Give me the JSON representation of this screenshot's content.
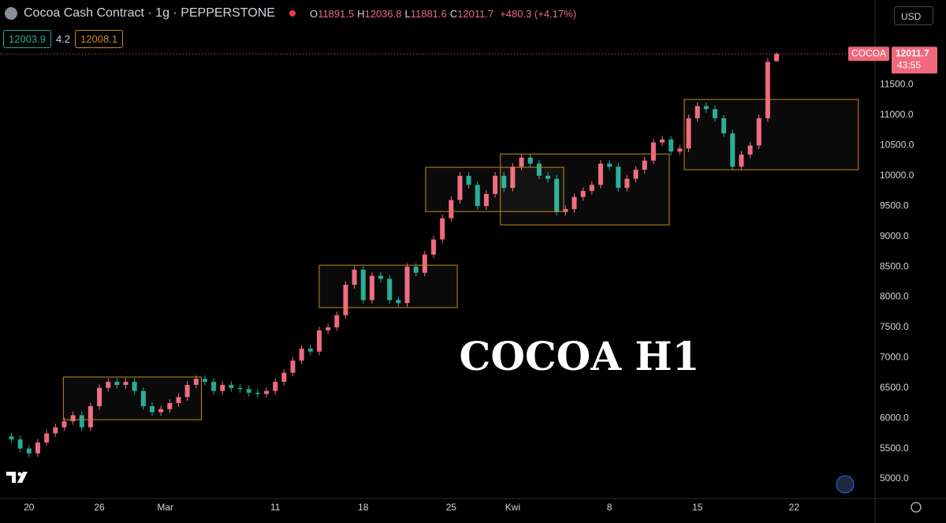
{
  "header": {
    "title": "Cocoa Cash Contract · 1g · PEPPERSTONE",
    "ohlc": [
      {
        "label": "O",
        "value": 11891.5
      },
      {
        "label": "H",
        "value": 12036.8
      },
      {
        "label": "L",
        "value": 11881.6
      },
      {
        "label": "C",
        "value": 12011.7
      }
    ],
    "change": "+480.3 (+4.17%)",
    "bid": 12003.9,
    "spread": 4.2,
    "ask": 12008.1,
    "currency": "USD"
  },
  "chart_data": {
    "type": "candlestick",
    "annotation": "COCOA H1",
    "up_color": "#f0697c",
    "down_color": "#22ab94",
    "zone_color": "#c98a1a",
    "grid": false,
    "xlim": [
      -1.3,
      98.2
    ],
    "ylim": [
      4675,
      12900
    ],
    "xticks": [
      {
        "value": 2,
        "label": "20"
      },
      {
        "value": 10,
        "label": "26"
      },
      {
        "value": 17.5,
        "label": "Mar"
      },
      {
        "value": 30,
        "label": "11"
      },
      {
        "value": 40,
        "label": "18"
      },
      {
        "value": 50,
        "label": "25"
      },
      {
        "value": 57,
        "label": "Kwi"
      },
      {
        "value": 68,
        "label": "8"
      },
      {
        "value": 78,
        "label": "15"
      },
      {
        "value": 89,
        "label": "22"
      }
    ],
    "yticks": [
      {
        "value": 5000,
        "label": "5000.0"
      },
      {
        "value": 5500,
        "label": "5500.0"
      },
      {
        "value": 6000,
        "label": "6000.0"
      },
      {
        "value": 6500,
        "label": "6500.0"
      },
      {
        "value": 7000,
        "label": "7000.0"
      },
      {
        "value": 7500,
        "label": "7500.0"
      },
      {
        "value": 8000,
        "label": "8000.0"
      },
      {
        "value": 8500,
        "label": "8500.0"
      },
      {
        "value": 9000,
        "label": "9000.0"
      },
      {
        "value": 9500,
        "label": "9500.0"
      },
      {
        "value": 10000,
        "label": "10000.0"
      },
      {
        "value": 10500,
        "label": "10500.0"
      },
      {
        "value": 11000,
        "label": "11000.0"
      },
      {
        "value": 11500,
        "label": "11500.0"
      }
    ],
    "open": [
      5700,
      5650,
      5500,
      5420,
      5600,
      5750,
      5850,
      5950,
      6050,
      5850,
      6200,
      6500,
      6600,
      6550,
      6600,
      6450,
      6200,
      6100,
      6150,
      6250,
      6350,
      6550,
      6650,
      6600,
      6450,
      6550,
      6500,
      6480,
      6420,
      6400,
      6450,
      6600,
      6750,
      6950,
      7150,
      7100,
      7450,
      7500,
      7700,
      8200,
      8450,
      7950,
      8350,
      8300,
      7950,
      7900,
      8500,
      8400,
      8700,
      8950,
      9300,
      9600,
      10000,
      9850,
      9500,
      9700,
      10000,
      9800,
      10150,
      10300,
      10200,
      10000,
      9950,
      9400,
      9450,
      9650,
      9750,
      9850,
      10200,
      10150,
      9800,
      9950,
      10100,
      10250,
      10550,
      10600,
      10400,
      10450,
      10950,
      11150,
      11100,
      10950,
      10700,
      10150,
      10350,
      10500,
      10950,
      11891.5
    ],
    "high": [
      5760,
      5710,
      5560,
      5660,
      5810,
      5910,
      6010,
      6110,
      6110,
      6260,
      6560,
      6660,
      6660,
      6660,
      6660,
      6510,
      6260,
      6210,
      6310,
      6410,
      6610,
      6710,
      6710,
      6660,
      6610,
      6610,
      6560,
      6540,
      6480,
      6510,
      6660,
      6810,
      7010,
      7210,
      7210,
      7510,
      7560,
      7760,
      8260,
      8510,
      8510,
      8410,
      8410,
      8360,
      8010,
      8560,
      8560,
      8760,
      9010,
      9360,
      9660,
      10060,
      10060,
      9910,
      9760,
      10060,
      10060,
      10210,
      10360,
      10360,
      10260,
      10060,
      10010,
      9510,
      9710,
      9810,
      9910,
      10260,
      10260,
      10210,
      10010,
      10160,
      10310,
      10610,
      10660,
      10660,
      10510,
      11010,
      11210,
      11210,
      11160,
      11010,
      10760,
      10410,
      10560,
      11010,
      11940,
      12036.8
    ],
    "low": [
      5590,
      5440,
      5360,
      5360,
      5540,
      5690,
      5790,
      5890,
      5790,
      5790,
      6140,
      6440,
      6490,
      6490,
      6390,
      6140,
      6040,
      6040,
      6090,
      6190,
      6290,
      6490,
      6540,
      6390,
      6390,
      6440,
      6420,
      6360,
      6340,
      6340,
      6390,
      6540,
      6690,
      6890,
      7040,
      7040,
      7390,
      7440,
      7640,
      8140,
      7890,
      7890,
      8240,
      7890,
      7840,
      7840,
      8340,
      8340,
      8640,
      8890,
      9240,
      9540,
      9790,
      9440,
      9440,
      9640,
      9740,
      9740,
      10090,
      10140,
      9940,
      9890,
      9340,
      9340,
      9390,
      9590,
      9690,
      9790,
      10090,
      9740,
      9740,
      9890,
      10040,
      10190,
      10490,
      10340,
      10340,
      10390,
      10890,
      11040,
      10890,
      10640,
      10090,
      10090,
      10290,
      10440,
      10890,
      11881.6
    ],
    "close": [
      5650,
      5500,
      5420,
      5600,
      5750,
      5850,
      5950,
      6050,
      5850,
      6200,
      6500,
      6600,
      6550,
      6600,
      6450,
      6200,
      6100,
      6150,
      6250,
      6350,
      6550,
      6650,
      6600,
      6450,
      6550,
      6500,
      6480,
      6420,
      6400,
      6450,
      6600,
      6750,
      6950,
      7150,
      7100,
      7450,
      7500,
      7700,
      8200,
      8450,
      7950,
      8350,
      8300,
      7950,
      7900,
      8500,
      8400,
      8700,
      8950,
      9300,
      9600,
      10000,
      9850,
      9500,
      9700,
      10000,
      9800,
      10150,
      10300,
      10200,
      10000,
      9950,
      9400,
      9450,
      9650,
      9750,
      9850,
      10200,
      10150,
      9800,
      9950,
      10100,
      10250,
      10550,
      10600,
      10400,
      10450,
      10950,
      11150,
      11100,
      10950,
      10700,
      10150,
      10350,
      10500,
      10950,
      11880,
      12011.7
    ],
    "zones": [
      {
        "x": [
          5.9,
          21.6
        ],
        "y": [
          5975,
          6680
        ]
      },
      {
        "x": [
          35,
          50.7
        ],
        "y": [
          7825,
          8525
        ]
      },
      {
        "x": [
          47.1,
          62.8
        ],
        "y": [
          9410,
          10140
        ]
      },
      {
        "x": [
          55.6,
          74.8
        ],
        "y": [
          9190,
          10360
        ]
      },
      {
        "x": [
          76.5,
          96.3
        ],
        "y": [
          10100,
          11260
        ]
      }
    ],
    "last_price": {
      "symbol": "COCOA",
      "value": 12011.7,
      "countdown": "43:55"
    }
  }
}
